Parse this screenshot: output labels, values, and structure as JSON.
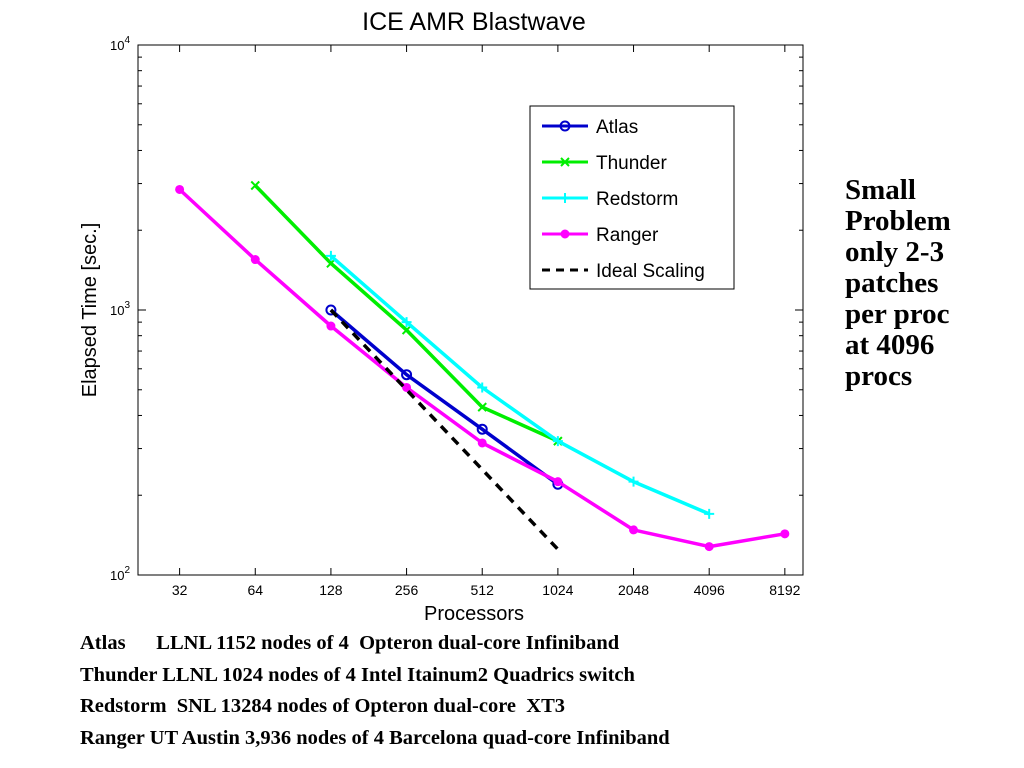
{
  "chart_data": {
    "type": "line",
    "title": "ICE AMR Blastwave",
    "xlabel": "Processors",
    "ylabel": "Elapsed Time [sec.]",
    "xscale": "log2",
    "yscale": "log10",
    "x_ticks": [
      "32",
      "64",
      "128",
      "256",
      "512",
      "1024",
      "2048",
      "4096",
      "8192"
    ],
    "y_ticks": [
      {
        "value": 100,
        "base": "10",
        "exp": "2"
      },
      {
        "value": 1000,
        "base": "10",
        "exp": "3"
      },
      {
        "value": 10000,
        "base": "10",
        "exp": "4"
      }
    ],
    "ylim": [
      100,
      10000
    ],
    "grid": false,
    "legend_position": "top-right",
    "series": [
      {
        "name": "Atlas",
        "color": "#0000cc",
        "marker": "circle-open",
        "x": [
          128,
          256,
          512,
          1024
        ],
        "y": [
          1000,
          570,
          355,
          220
        ]
      },
      {
        "name": "Thunder",
        "color": "#00ee00",
        "marker": "x",
        "x": [
          64,
          128,
          256,
          512,
          1024
        ],
        "y": [
          2950,
          1500,
          840,
          430,
          320
        ]
      },
      {
        "name": "Redstorm",
        "color": "#00ffff",
        "marker": "plus",
        "x": [
          128,
          256,
          512,
          1024,
          2048,
          4096
        ],
        "y": [
          1600,
          900,
          510,
          320,
          225,
          170
        ]
      },
      {
        "name": "Ranger",
        "color": "#ff00ff",
        "marker": "dot",
        "x": [
          32,
          64,
          128,
          256,
          512,
          1024,
          2048,
          4096,
          8192
        ],
        "y": [
          2850,
          1550,
          870,
          510,
          315,
          225,
          148,
          128,
          143
        ]
      },
      {
        "name": "Ideal Scaling",
        "color": "#000000",
        "marker": "none",
        "dashed": true,
        "x": [
          128,
          1024
        ],
        "y": [
          1000,
          125
        ]
      }
    ]
  },
  "side_note": [
    "Small",
    "Problem",
    "only 2-3",
    "patches",
    "per proc",
    "at 4096",
    "procs"
  ],
  "footnotes": [
    "Atlas      LLNL 1152 nodes of 4  Opteron dual-core Infiniband",
    "Thunder LLNL 1024 nodes of 4 Intel Itainum2 Quadrics switch",
    "Redstorm  SNL 13284 nodes of Opteron dual-core  XT3",
    "Ranger UT Austin 3,936 nodes of 4 Barcelona quad-core Infiniband"
  ]
}
